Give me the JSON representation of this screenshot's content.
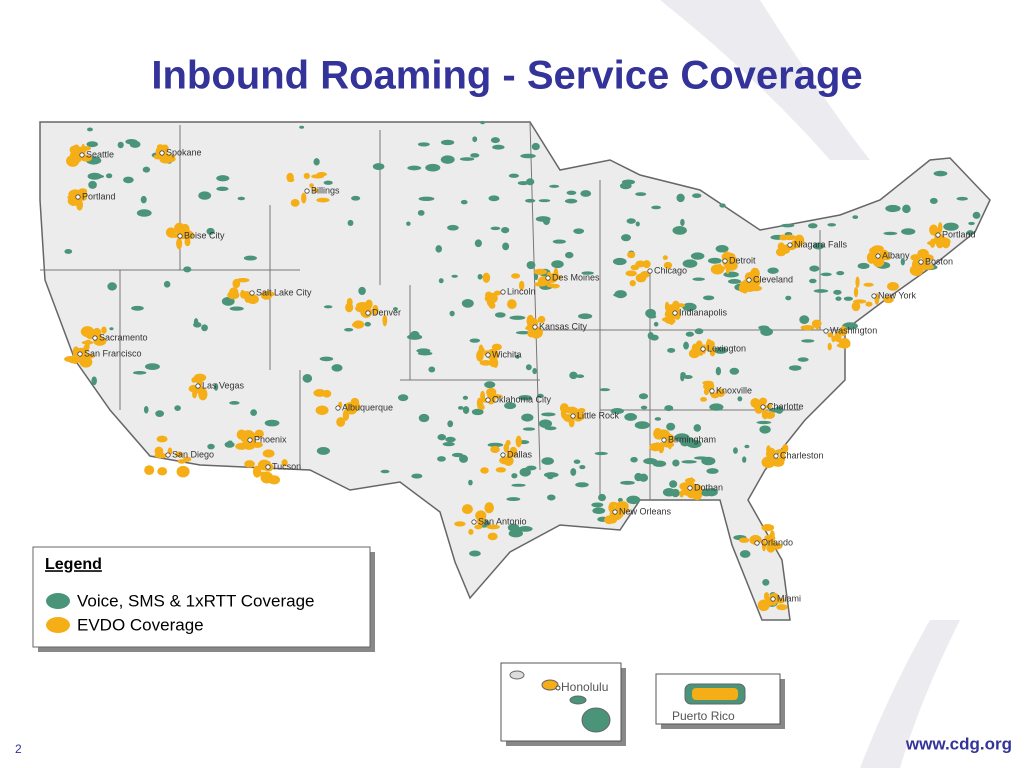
{
  "title": "Inbound Roaming - Service Coverage",
  "map": {
    "cities": [
      "Seattle",
      "Spokane",
      "Portland",
      "Billings",
      "Boise City",
      "Salt Lake City",
      "Denver",
      "Sacramento",
      "San Francisco",
      "Las Vegas",
      "Albuquerque",
      "Phoenix",
      "Tucson",
      "San Diego",
      "Lincoln",
      "Des Moines",
      "Kansas City",
      "Wichita",
      "Oklahoma City",
      "Dallas",
      "San Antonio",
      "Little Rock",
      "New Orleans",
      "Chicago",
      "Detroit",
      "Cleveland",
      "Indianapolis",
      "Lexington",
      "Knoxville",
      "Charlotte",
      "Birmingham",
      "Dothan",
      "Charleston",
      "Orlando",
      "Miami",
      "Niagara Falls",
      "Albany",
      "Portland",
      "Boston",
      "New York",
      "Washington"
    ],
    "insets": [
      "Honolulu",
      "Puerto Rico"
    ]
  },
  "legend": {
    "title": "Legend",
    "items": [
      "Voice, SMS & 1xRTT Coverage",
      "EVDO Coverage"
    ]
  },
  "footer": {
    "page": "2",
    "url": "www.cdg.org"
  }
}
